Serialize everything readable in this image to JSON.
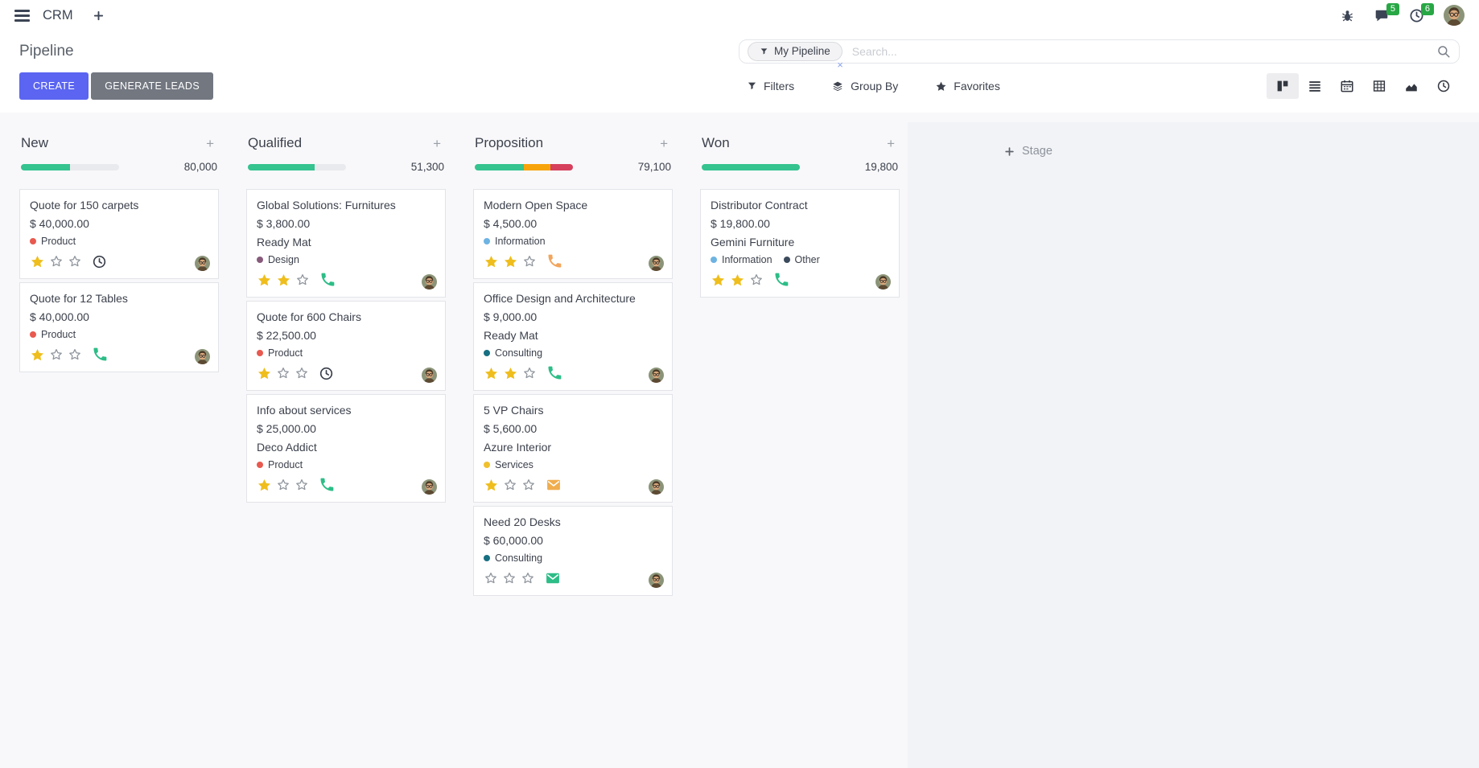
{
  "colors": {
    "accent": "#5b65f1",
    "button_secondary": "#727780",
    "success": "#35c38f",
    "warning": "#f7a40b",
    "danger": "#d6405c",
    "badge_green": "#28a745"
  },
  "navbar": {
    "app_name": "CRM",
    "message_badge": "5",
    "activity_badge": "6"
  },
  "control_panel": {
    "title": "Pipeline",
    "create_label": "CREATE",
    "generate_leads_label": "GENERATE LEADS",
    "search": {
      "facet_label": "My Pipeline",
      "placeholder": "Search..."
    },
    "filters_label": "Filters",
    "group_by_label": "Group By",
    "favorites_label": "Favorites"
  },
  "view_switcher": [
    {
      "name": "kanban",
      "active": true
    },
    {
      "name": "list",
      "active": false
    },
    {
      "name": "calendar",
      "active": false
    },
    {
      "name": "pivot",
      "active": false
    },
    {
      "name": "graph",
      "active": false
    },
    {
      "name": "activity",
      "active": false
    }
  ],
  "board": {
    "add_stage_label": "Stage",
    "columns": [
      {
        "title": "New",
        "count": "80,000",
        "progress": [
          {
            "color": "#35c38f",
            "pct": 50
          }
        ],
        "cards": [
          {
            "title": "Quote for 150 carpets",
            "amount": "$ 40,000.00",
            "tags": [
              {
                "label": "Product",
                "color": "#e8594f"
              }
            ],
            "stars": 1,
            "activity": {
              "type": "clock",
              "color": "#3a3f4b"
            }
          },
          {
            "title": "Quote for 12 Tables",
            "amount": "$ 40,000.00",
            "tags": [
              {
                "label": "Product",
                "color": "#e8594f"
              }
            ],
            "stars": 1,
            "activity": {
              "type": "phone",
              "color": "#2dbd87"
            }
          }
        ]
      },
      {
        "title": "Qualified",
        "count": "51,300",
        "progress": [
          {
            "color": "#35c38f",
            "pct": 68
          }
        ],
        "cards": [
          {
            "title": "Global Solutions: Furnitures",
            "amount": "$ 3,800.00",
            "partner": "Ready Mat",
            "tags": [
              {
                "label": "Design",
                "color": "#875a7b"
              }
            ],
            "stars": 2,
            "activity": {
              "type": "phone",
              "color": "#2dbd87"
            }
          },
          {
            "title": "Quote for 600 Chairs",
            "amount": "$ 22,500.00",
            "tags": [
              {
                "label": "Product",
                "color": "#e8594f"
              }
            ],
            "stars": 1,
            "activity": {
              "type": "clock",
              "color": "#3a3f4b"
            }
          },
          {
            "title": "Info about services",
            "amount": "$ 25,000.00",
            "partner": "Deco Addict",
            "tags": [
              {
                "label": "Product",
                "color": "#e8594f"
              }
            ],
            "stars": 1,
            "activity": {
              "type": "phone",
              "color": "#2dbd87"
            }
          }
        ]
      },
      {
        "title": "Proposition",
        "count": "79,100",
        "progress": [
          {
            "color": "#35c38f",
            "pct": 50
          },
          {
            "color": "#f7a40b",
            "pct": 27
          },
          {
            "color": "#d6405c",
            "pct": 23
          }
        ],
        "cards": [
          {
            "title": "Modern Open Space",
            "amount": "$ 4,500.00",
            "tags": [
              {
                "label": "Information",
                "color": "#6db3e2"
              }
            ],
            "stars": 2,
            "activity": {
              "type": "phone",
              "color": "#f2a55c"
            }
          },
          {
            "title": "Office Design and Architecture",
            "amount": "$ 9,000.00",
            "partner": "Ready Mat",
            "tags": [
              {
                "label": "Consulting",
                "color": "#177082"
              }
            ],
            "stars": 2,
            "activity": {
              "type": "phone",
              "color": "#2dbd87"
            }
          },
          {
            "title": "5 VP Chairs",
            "amount": "$ 5,600.00",
            "partner": "Azure Interior",
            "tags": [
              {
                "label": "Services",
                "color": "#f0c02e"
              }
            ],
            "stars": 1,
            "activity": {
              "type": "envelope",
              "color": "#f0ad4e"
            }
          },
          {
            "title": "Need 20 Desks",
            "amount": "$ 60,000.00",
            "tags": [
              {
                "label": "Consulting",
                "color": "#177082"
              }
            ],
            "stars": 0,
            "activity": {
              "type": "envelope",
              "color": "#2dbd87"
            }
          }
        ]
      },
      {
        "title": "Won",
        "count": "19,800",
        "progress": [
          {
            "color": "#35c38f",
            "pct": 100
          }
        ],
        "cards": [
          {
            "title": "Distributor Contract",
            "amount": "$ 19,800.00",
            "partner": "Gemini Furniture",
            "tags": [
              {
                "label": "Information",
                "color": "#6db3e2"
              },
              {
                "label": "Other",
                "color": "#3b4a5c"
              }
            ],
            "stars": 2,
            "activity": {
              "type": "phone",
              "color": "#2dbd87"
            }
          }
        ]
      }
    ]
  }
}
